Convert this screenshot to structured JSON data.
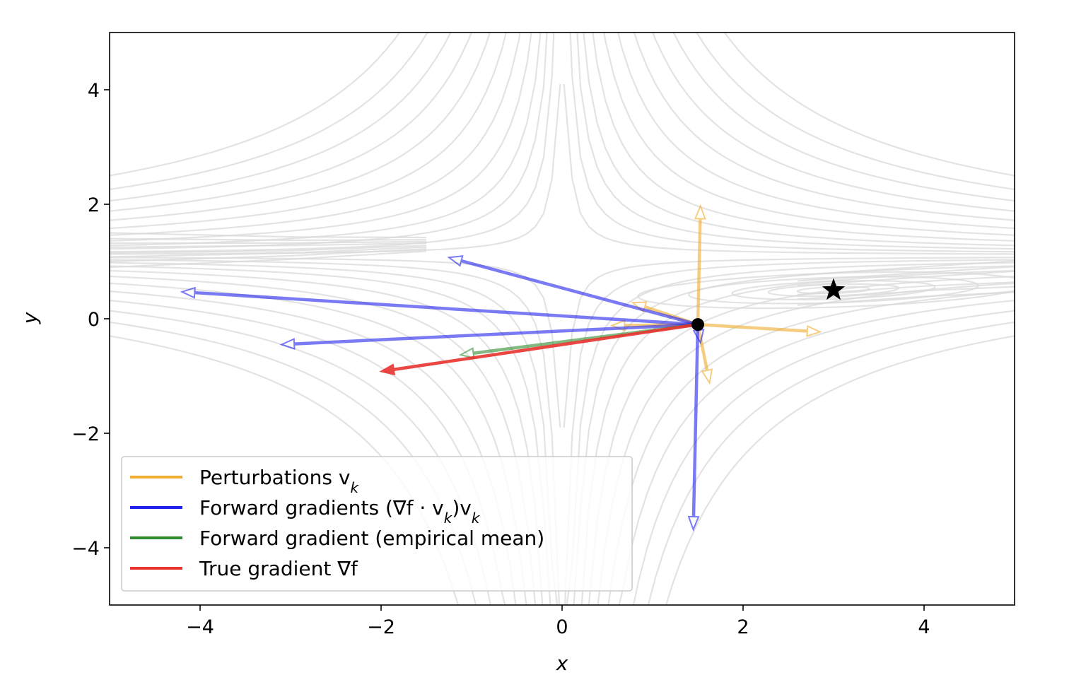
{
  "chart_data": {
    "type": "line",
    "title": "",
    "xlabel": "x",
    "ylabel": "y",
    "xlim": [
      -5,
      5
    ],
    "ylim": [
      -5,
      5
    ],
    "x_ticks": [
      -4,
      -2,
      0,
      2,
      4
    ],
    "y_ticks": [
      -4,
      -2,
      0,
      2,
      4
    ],
    "x_tick_labels": [
      "−4",
      "−2",
      "0",
      "2",
      "4"
    ],
    "y_tick_labels": [
      "−4",
      "−2",
      "0",
      "2",
      "4"
    ],
    "grid": false,
    "legend_position": "lower-left",
    "background": "contour lines of the objective function (light gray)",
    "point": {
      "x": 1.5,
      "y": -0.1,
      "color": "#000000"
    },
    "optimum": {
      "x": 3.0,
      "y": 0.5,
      "marker": "star",
      "color": "#000000"
    },
    "series": [
      {
        "name": "Perturbations v_k",
        "legend_label": "Perturbations v",
        "legend_sub": "k",
        "color": "#f0ad2e",
        "arrows": [
          {
            "x0": 1.5,
            "y0": -0.1,
            "x1": 1.53,
            "y1": 1.97
          },
          {
            "x0": 1.5,
            "y0": -0.1,
            "x1": 2.85,
            "y1": -0.23
          },
          {
            "x0": 1.5,
            "y0": -0.1,
            "x1": 1.63,
            "y1": -1.12
          },
          {
            "x0": 1.5,
            "y0": -0.1,
            "x1": 0.78,
            "y1": 0.28
          },
          {
            "x0": 1.5,
            "y0": -0.1,
            "x1": 0.55,
            "y1": -0.12
          }
        ]
      },
      {
        "name": "Forward gradients (∇f · v_k)v_k",
        "legend_label": "Forward gradients (∇f · v",
        "legend_sub": "k",
        "legend_tail": ")v",
        "legend_sub2": "k",
        "color": "#2222ee",
        "arrows": [
          {
            "x0": 1.5,
            "y0": -0.1,
            "x1": -1.25,
            "y1": 1.07
          },
          {
            "x0": 1.5,
            "y0": -0.1,
            "x1": -4.2,
            "y1": 0.47
          },
          {
            "x0": 1.5,
            "y0": -0.1,
            "x1": -3.1,
            "y1": -0.45
          },
          {
            "x0": 1.5,
            "y0": -0.1,
            "x1": 1.45,
            "y1": -3.68
          },
          {
            "x0": 1.5,
            "y0": -0.1,
            "x1": 1.53,
            "y1": -0.42
          }
        ]
      },
      {
        "name": "Forward gradient (empirical mean)",
        "legend_label": "Forward gradient (empirical mean)",
        "color": "#2e8b2e",
        "arrows": [
          {
            "x0": 1.5,
            "y0": -0.1,
            "x1": -1.12,
            "y1": -0.63
          }
        ]
      },
      {
        "name": "True gradient ∇f",
        "legend_label": "True gradient ∇f",
        "color": "#e8332e",
        "arrows": [
          {
            "x0": 1.5,
            "y0": -0.1,
            "x1": -2.0,
            "y1": -0.92
          }
        ]
      }
    ]
  }
}
